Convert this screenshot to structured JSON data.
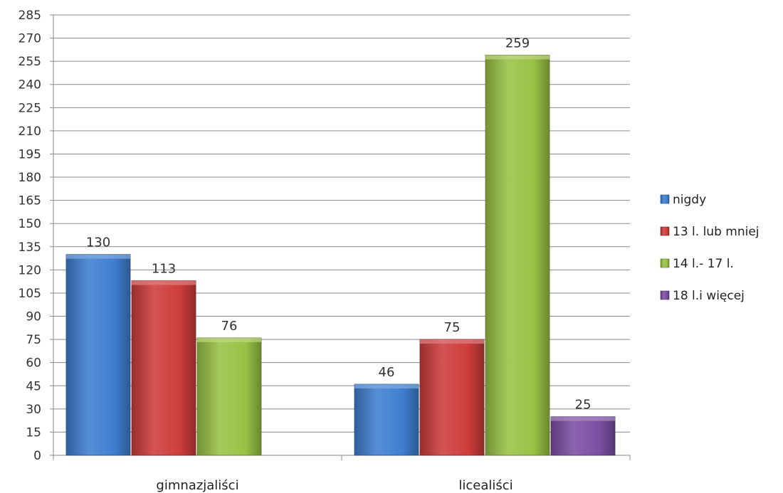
{
  "chart_data": {
    "type": "bar",
    "categories": [
      "gimnazjaliści",
      "licealiści"
    ],
    "series": [
      {
        "name": "nigdy",
        "values": [
          130,
          46
        ],
        "color": "#3f7fd0"
      },
      {
        "name": "13 l. lub mniej",
        "values": [
          113,
          75
        ],
        "color": "#cd3d3b"
      },
      {
        "name": "14 l.- 17 l.",
        "values": [
          76,
          259
        ],
        "color": "#99c245"
      },
      {
        "name": "18 l.i więcej",
        "values": [
          null,
          25
        ],
        "color": "#7b4fa3"
      }
    ],
    "y_ticks": [
      "0",
      "15",
      "30",
      "45",
      "60",
      "75",
      "90",
      "105",
      "120",
      "135",
      "150",
      "165",
      "180",
      "195",
      "210",
      "225",
      "240",
      "255",
      "270",
      "285"
    ],
    "ylim": [
      0,
      285
    ],
    "grid": true,
    "legend_position": "right",
    "title": "",
    "xlabel": "",
    "ylabel": ""
  }
}
